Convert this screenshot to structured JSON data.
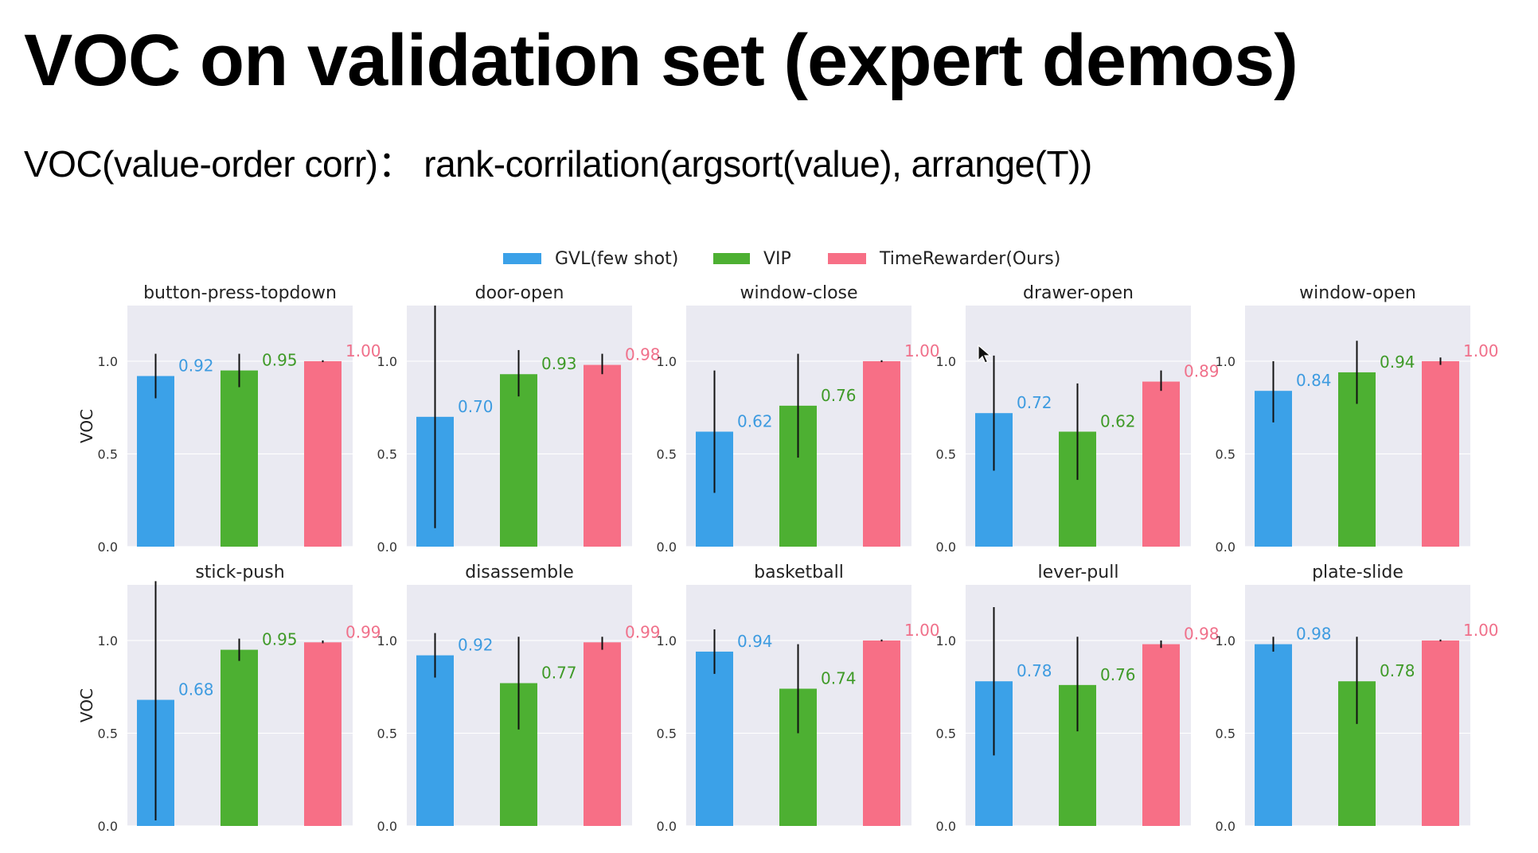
{
  "slide": {
    "title": "VOC on validation set (expert demos)",
    "subtitle": "VOC(value-order corr)： rank-corrilation(argsort(value), arrange(T))"
  },
  "chart_data": {
    "type": "bar",
    "layout": "2x5 grid of subplots",
    "ylabel": "VOC",
    "ylim": [
      0,
      1.3
    ],
    "yticks": [
      "0.0",
      "0.5",
      "1.0"
    ],
    "legend": {
      "placement": "top-center",
      "entries": [
        "GVL(few shot)",
        "VIP",
        "TimeRewarder(Ours)"
      ]
    },
    "colors": {
      "GVL(few shot)": "#3ba1e8",
      "VIP": "#4db032",
      "TimeRewarder(Ours)": "#f76f86",
      "label_gvl": "#3d9be0",
      "label_vip": "#3f9a28",
      "label_tr": "#f0708a",
      "panel_bg": "#eaeaf2"
    },
    "panels": [
      {
        "title": "button-press-topdown",
        "values": [
          0.92,
          0.95,
          1.0
        ],
        "labels": [
          "0.92",
          "0.95",
          "1.00"
        ],
        "err_low": [
          0.8,
          0.86,
          0.995
        ],
        "err_high": [
          1.04,
          1.04,
          1.005
        ]
      },
      {
        "title": "door-open",
        "values": [
          0.7,
          0.93,
          0.98
        ],
        "labels": [
          "0.70",
          "0.93",
          "0.98"
        ],
        "err_low": [
          0.1,
          0.81,
          0.93
        ],
        "err_high": [
          1.3,
          1.06,
          1.04
        ]
      },
      {
        "title": "window-close",
        "values": [
          0.62,
          0.76,
          1.0
        ],
        "labels": [
          "0.62",
          "0.76",
          "1.00"
        ],
        "err_low": [
          0.29,
          0.48,
          0.995
        ],
        "err_high": [
          0.95,
          1.04,
          1.005
        ]
      },
      {
        "title": "drawer-open",
        "values": [
          0.72,
          0.62,
          0.89
        ],
        "labels": [
          "0.72",
          "0.62",
          "0.89"
        ],
        "err_low": [
          0.41,
          0.36,
          0.84
        ],
        "err_high": [
          1.03,
          0.88,
          0.95
        ]
      },
      {
        "title": "window-open",
        "values": [
          0.84,
          0.94,
          1.0
        ],
        "labels": [
          "0.84",
          "0.94",
          "1.00"
        ],
        "err_low": [
          0.67,
          0.77,
          0.98
        ],
        "err_high": [
          1.0,
          1.11,
          1.02
        ]
      },
      {
        "title": "stick-push",
        "values": [
          0.68,
          0.95,
          0.99
        ],
        "labels": [
          "0.68",
          "0.95",
          "0.99"
        ],
        "err_low": [
          0.03,
          0.89,
          0.985
        ],
        "err_high": [
          1.32,
          1.01,
          1.0
        ]
      },
      {
        "title": "disassemble",
        "values": [
          0.92,
          0.77,
          0.99
        ],
        "labels": [
          "0.92",
          "0.77",
          "0.99"
        ],
        "err_low": [
          0.8,
          0.52,
          0.95
        ],
        "err_high": [
          1.04,
          1.02,
          1.02
        ]
      },
      {
        "title": "basketball",
        "values": [
          0.94,
          0.74,
          1.0
        ],
        "labels": [
          "0.94",
          "0.74",
          "1.00"
        ],
        "err_low": [
          0.82,
          0.5,
          0.995
        ],
        "err_high": [
          1.06,
          0.98,
          1.005
        ]
      },
      {
        "title": "lever-pull",
        "values": [
          0.78,
          0.76,
          0.98
        ],
        "labels": [
          "0.78",
          "0.76",
          "0.98"
        ],
        "err_low": [
          0.38,
          0.51,
          0.96
        ],
        "err_high": [
          1.18,
          1.02,
          1.0
        ]
      },
      {
        "title": "plate-slide",
        "values": [
          0.98,
          0.78,
          1.0
        ],
        "labels": [
          "0.98",
          "0.78",
          "1.00"
        ],
        "err_low": [
          0.94,
          0.55,
          0.995
        ],
        "err_high": [
          1.02,
          1.02,
          1.005
        ]
      }
    ]
  }
}
